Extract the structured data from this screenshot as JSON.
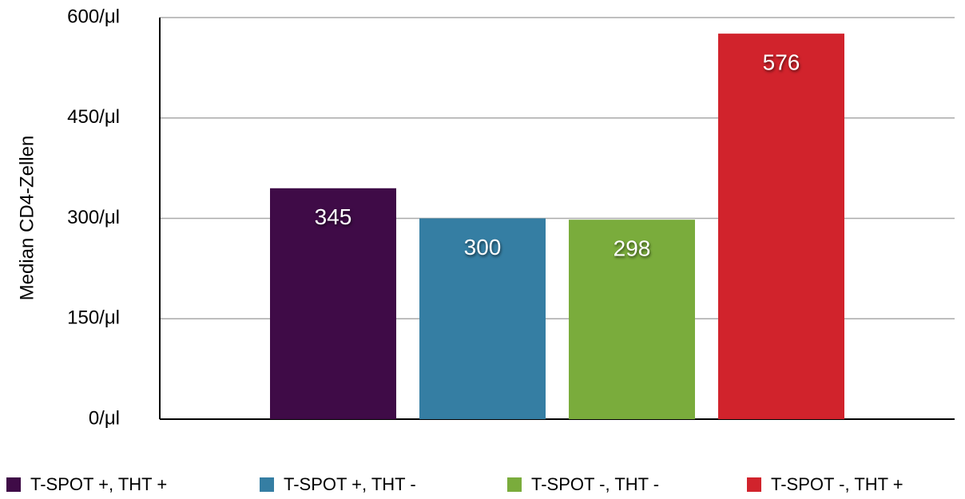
{
  "chart_data": {
    "type": "bar",
    "y_label": "Median CD4-Zellen",
    "categories": [
      null
    ],
    "series": [
      {
        "name": "T-SPOT +, THT +",
        "color": "#3f0b47",
        "values": [
          345
        ]
      },
      {
        "name": "T-SPOT +, THT -",
        "color": "#357ea3",
        "values": [
          300
        ]
      },
      {
        "name": "T-SPOT -, THT -",
        "color": "#7aac3c",
        "values": [
          298
        ]
      },
      {
        "name": "T-SPOT -, THT +",
        "color": "#d1232c",
        "values": [
          576
        ]
      }
    ],
    "ylim": [
      0,
      600
    ],
    "yticks": [
      {
        "value": 0,
        "label": "0/μl"
      },
      {
        "value": 150,
        "label": "150/μl"
      },
      {
        "value": 300,
        "label": "300/μl"
      },
      {
        "value": 450,
        "label": "450/μl"
      },
      {
        "value": 600,
        "label": "600/μl"
      }
    ],
    "grid": true,
    "legend": "bottom"
  }
}
